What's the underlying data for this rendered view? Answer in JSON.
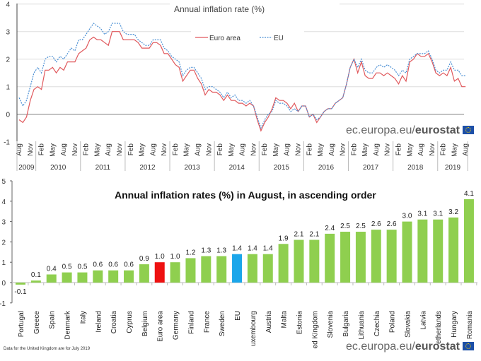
{
  "chart_data": [
    {
      "type": "line",
      "title": "Annual inflation rate (%)",
      "ylim": [
        -1,
        4
      ],
      "yticks": [
        -1,
        0,
        1,
        2,
        3,
        4
      ],
      "grid": true,
      "legend_position": "top-center",
      "x_start": "Aug 2009",
      "x_end": "Aug 2019",
      "month_tick_labels": [
        "Feb",
        "May",
        "Aug",
        "Nov"
      ],
      "year_labels": [
        "2009",
        "2010",
        "2011",
        "2012",
        "2013",
        "2014",
        "2015",
        "2016",
        "2017",
        "2018",
        "2019"
      ],
      "series": [
        {
          "name": "Euro area",
          "color": "#e0585c",
          "style": "solid",
          "values": [
            -0.2,
            -0.3,
            -0.1,
            0.5,
            0.9,
            1.0,
            0.9,
            1.6,
            1.6,
            1.7,
            1.5,
            1.7,
            1.6,
            1.9,
            1.9,
            1.9,
            2.2,
            2.3,
            2.4,
            2.7,
            2.8,
            2.7,
            2.7,
            2.6,
            2.5,
            3.0,
            3.0,
            3.0,
            2.7,
            2.7,
            2.7,
            2.7,
            2.6,
            2.4,
            2.4,
            2.4,
            2.6,
            2.6,
            2.5,
            2.2,
            2.2,
            2.0,
            1.8,
            1.7,
            1.2,
            1.4,
            1.6,
            1.6,
            1.3,
            1.1,
            0.7,
            0.9,
            0.8,
            0.8,
            0.7,
            0.5,
            0.7,
            0.5,
            0.5,
            0.4,
            0.4,
            0.3,
            0.4,
            0.3,
            -0.2,
            -0.6,
            -0.3,
            -0.1,
            0.2,
            0.6,
            0.5,
            0.5,
            0.4,
            0.2,
            0.4,
            0.1,
            0.3,
            0.3,
            -0.1,
            0.0,
            -0.3,
            -0.1,
            0.1,
            0.2,
            0.2,
            0.4,
            0.5,
            0.6,
            1.1,
            1.7,
            2.0,
            1.5,
            1.9,
            1.4,
            1.3,
            1.3,
            1.5,
            1.5,
            1.4,
            1.5,
            1.4,
            1.3,
            1.1,
            1.4,
            1.2,
            1.9,
            2.0,
            2.2,
            2.1,
            2.1,
            2.2,
            1.9,
            1.5,
            1.4,
            1.5,
            1.4,
            1.7,
            1.2,
            1.3,
            1.0,
            1.0
          ]
        },
        {
          "name": "EU",
          "color": "#4a8fd4",
          "style": "dotted",
          "values": [
            0.6,
            0.3,
            0.5,
            1.0,
            1.5,
            1.7,
            1.5,
            2.0,
            2.1,
            2.1,
            1.9,
            2.1,
            2.0,
            2.2,
            2.4,
            2.3,
            2.7,
            2.7,
            2.9,
            3.1,
            3.3,
            3.2,
            3.1,
            2.9,
            3.0,
            3.3,
            3.3,
            3.3,
            3.0,
            2.9,
            2.9,
            2.9,
            2.7,
            2.6,
            2.5,
            2.5,
            2.7,
            2.7,
            2.7,
            2.4,
            2.3,
            2.1,
            2.0,
            1.9,
            1.4,
            1.6,
            1.7,
            1.7,
            1.5,
            1.3,
            0.9,
            1.0,
            1.0,
            0.9,
            0.8,
            0.6,
            0.8,
            0.6,
            0.7,
            0.5,
            0.5,
            0.4,
            0.5,
            0.3,
            -0.1,
            -0.5,
            -0.2,
            0.0,
            0.1,
            0.5,
            0.4,
            0.4,
            0.3,
            0.1,
            0.2,
            0.1,
            0.3,
            0.3,
            -0.1,
            0.0,
            -0.2,
            -0.1,
            0.1,
            0.2,
            0.2,
            0.4,
            0.5,
            0.6,
            1.1,
            1.7,
            2.0,
            1.7,
            2.0,
            1.6,
            1.5,
            1.5,
            1.7,
            1.8,
            1.7,
            1.8,
            1.7,
            1.6,
            1.4,
            1.6,
            1.5,
            2.0,
            2.1,
            2.2,
            2.2,
            2.2,
            2.3,
            2.0,
            1.6,
            1.5,
            1.6,
            1.6,
            1.9,
            1.6,
            1.6,
            1.4,
            1.4
          ]
        }
      ]
    },
    {
      "type": "bar",
      "title": "Annual inflation rates (%) in August, in ascending order",
      "ylim": [
        -1,
        5
      ],
      "yticks": [
        -1,
        0,
        1,
        2,
        3,
        4,
        5
      ],
      "grid": false,
      "categories": [
        "Portugal",
        "Greece",
        "Spain",
        "Denmark",
        "Italy",
        "Ireland",
        "Croatia",
        "Cyprus",
        "Belgium",
        "Euro area",
        "Germany",
        "Finland",
        "France",
        "Sweden",
        "EU",
        "uxembourg",
        "Austria",
        "Malta",
        "Estonia",
        "ed Kingdom",
        "Slovenia",
        "Bulgaria",
        "Lithuania",
        "Czechia",
        "Poland",
        "Slovakia",
        "Latvia",
        "etherlands",
        "Hungary",
        "Romania"
      ],
      "values": [
        -0.1,
        0.1,
        0.4,
        0.5,
        0.5,
        0.6,
        0.6,
        0.6,
        0.9,
        1.0,
        1.0,
        1.2,
        1.3,
        1.3,
        1.4,
        1.4,
        1.4,
        1.9,
        2.1,
        2.1,
        2.4,
        2.5,
        2.5,
        2.6,
        2.6,
        3.0,
        3.1,
        3.1,
        3.2,
        4.1
      ],
      "data_labels": [
        "-0.1",
        "0.1",
        "0.4",
        "0.5",
        "0.5",
        "0.6",
        "0.6",
        "0.6",
        "0.9",
        "1.0",
        "1.0",
        "1.2",
        "1.3",
        "1.3",
        "1.4",
        "1.4",
        "1.4",
        "1.9",
        "2.1",
        "2.1",
        "2.4",
        "2.5",
        "2.5",
        "2.6",
        "2.6",
        "3.0",
        "3.1",
        "3.1",
        "3.2",
        "4.1"
      ],
      "colors": {
        "default": "#8fcf4f",
        "Euro area": "#ee1111",
        "EU": "#1ba6ea"
      }
    }
  ],
  "footnote": "Data for the United Kingdom are for July 2019",
  "source": {
    "prefix": "ec.europa.eu/",
    "brand": "eurostat"
  }
}
